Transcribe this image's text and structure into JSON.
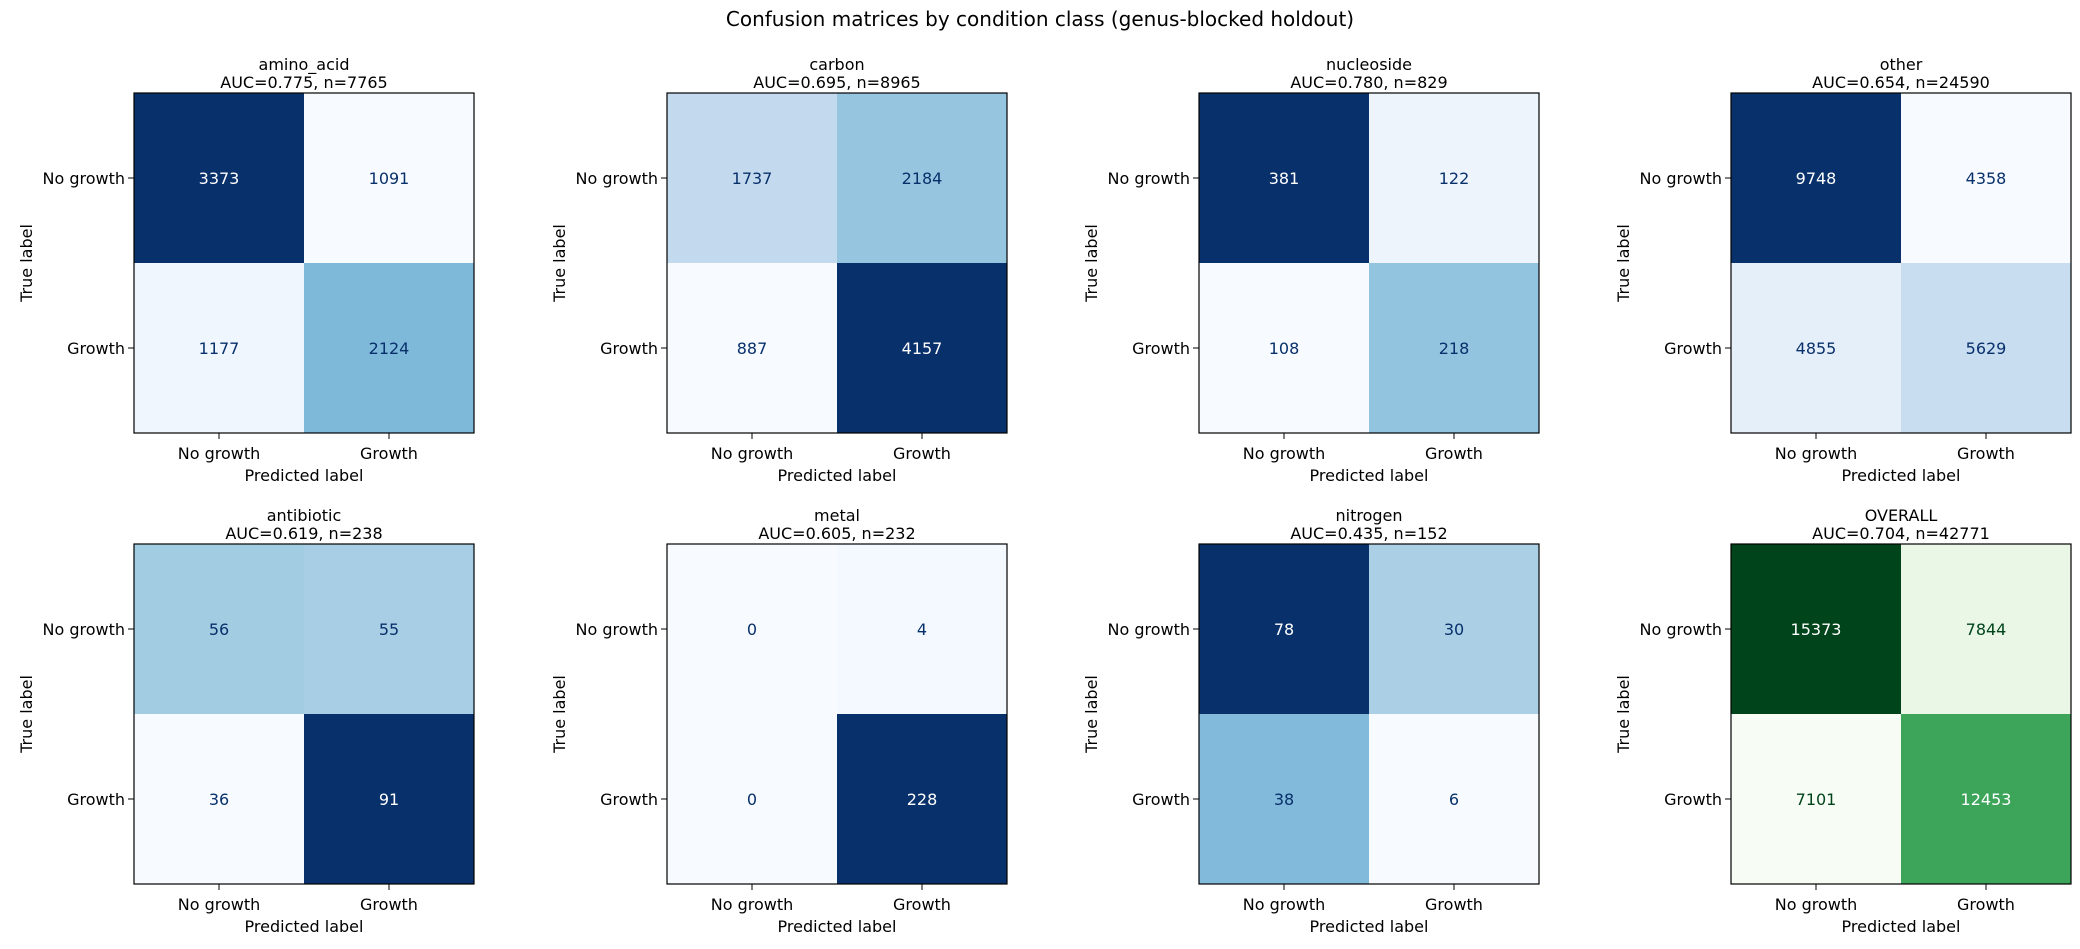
{
  "suptitle": "Confusion matrices by condition class (genus-blocked holdout)",
  "chart_data": [
    {
      "type": "heatmap",
      "class": "amino_acid",
      "title": [
        "amino_acid",
        "AUC=0.775, n=7765"
      ],
      "colormap": "Blues",
      "rows": [
        "No growth",
        "Growth"
      ],
      "cols": [
        "No growth",
        "Growth"
      ],
      "xlabel": "Predicted label",
      "ylabel": "True label",
      "matrix": [
        [
          3373,
          1091
        ],
        [
          1177,
          2124
        ]
      ]
    },
    {
      "type": "heatmap",
      "class": "carbon",
      "title": [
        "carbon",
        "AUC=0.695, n=8965"
      ],
      "colormap": "Blues",
      "rows": [
        "No growth",
        "Growth"
      ],
      "cols": [
        "No growth",
        "Growth"
      ],
      "xlabel": "Predicted label",
      "ylabel": "True label",
      "matrix": [
        [
          1737,
          2184
        ],
        [
          887,
          4157
        ]
      ]
    },
    {
      "type": "heatmap",
      "class": "nucleoside",
      "title": [
        "nucleoside",
        "AUC=0.780, n=829"
      ],
      "colormap": "Blues",
      "rows": [
        "No growth",
        "Growth"
      ],
      "cols": [
        "No growth",
        "Growth"
      ],
      "xlabel": "Predicted label",
      "ylabel": "True label",
      "matrix": [
        [
          381,
          122
        ],
        [
          108,
          218
        ]
      ]
    },
    {
      "type": "heatmap",
      "class": "other",
      "title": [
        "other",
        "AUC=0.654, n=24590"
      ],
      "colormap": "Blues",
      "rows": [
        "No growth",
        "Growth"
      ],
      "cols": [
        "No growth",
        "Growth"
      ],
      "xlabel": "Predicted label",
      "ylabel": "True label",
      "matrix": [
        [
          9748,
          4358
        ],
        [
          4855,
          5629
        ]
      ]
    },
    {
      "type": "heatmap",
      "class": "antibiotic",
      "title": [
        "antibiotic",
        "AUC=0.619, n=238"
      ],
      "colormap": "Blues",
      "rows": [
        "No growth",
        "Growth"
      ],
      "cols": [
        "No growth",
        "Growth"
      ],
      "xlabel": "Predicted label",
      "ylabel": "True label",
      "matrix": [
        [
          56,
          55
        ],
        [
          36,
          91
        ]
      ]
    },
    {
      "type": "heatmap",
      "class": "metal",
      "title": [
        "metal",
        "AUC=0.605, n=232"
      ],
      "colormap": "Blues",
      "rows": [
        "No growth",
        "Growth"
      ],
      "cols": [
        "No growth",
        "Growth"
      ],
      "xlabel": "Predicted label",
      "ylabel": "True label",
      "matrix": [
        [
          0,
          4
        ],
        [
          0,
          228
        ]
      ]
    },
    {
      "type": "heatmap",
      "class": "nitrogen",
      "title": [
        "nitrogen",
        "AUC=0.435, n=152"
      ],
      "colormap": "Blues",
      "rows": [
        "No growth",
        "Growth"
      ],
      "cols": [
        "No growth",
        "Growth"
      ],
      "xlabel": "Predicted label",
      "ylabel": "True label",
      "matrix": [
        [
          78,
          30
        ],
        [
          38,
          6
        ]
      ]
    },
    {
      "type": "heatmap",
      "class": "OVERALL",
      "title": [
        "OVERALL",
        "AUC=0.704, n=42771"
      ],
      "colormap": "Greens",
      "rows": [
        "No growth",
        "Growth"
      ],
      "cols": [
        "No growth",
        "Growth"
      ],
      "xlabel": "Predicted label",
      "ylabel": "True label",
      "matrix": [
        [
          15373,
          7844
        ],
        [
          7101,
          12453
        ]
      ]
    }
  ]
}
